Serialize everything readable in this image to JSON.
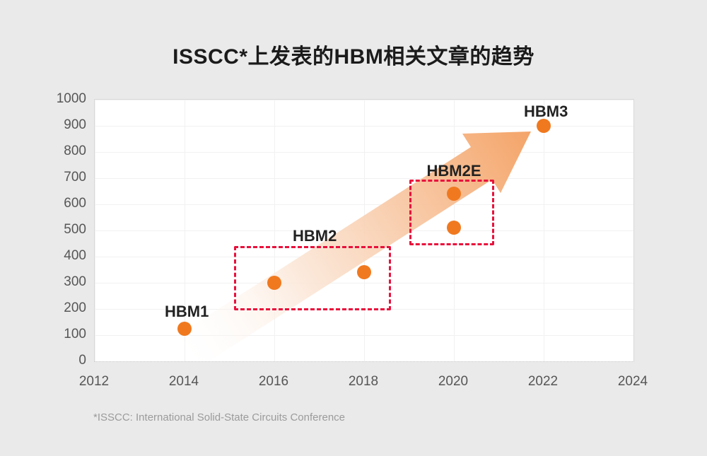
{
  "title": "ISSCC*上发表的HBM相关文章的趋势",
  "footnote": "*ISSCC: International Solid-State Circuits Conference",
  "colors": {
    "background": "#eaeaea",
    "plot_background": "#ffffff",
    "gridline": "#f1f1f1",
    "dot_orange": "#f0791f",
    "arrow_orange": "#f4a468",
    "arrow_orange_light": "#fbe7d8",
    "group_box_red": "#e8113c",
    "label_dark": "#222222",
    "tick_gray": "#565656",
    "footnote_gray": "#9b9b9b"
  },
  "chart_data": {
    "type": "scatter",
    "title": "ISSCC*上发表的HBM相关文章的趋势",
    "xlabel": "",
    "ylabel": "",
    "xlim": [
      2012,
      2024
    ],
    "ylim": [
      0,
      1000
    ],
    "x_ticks": [
      "2012",
      "2014",
      "2016",
      "2018",
      "2020",
      "2022",
      "2024"
    ],
    "y_ticks": [
      0,
      100,
      200,
      300,
      400,
      500,
      600,
      700,
      800,
      900,
      1000
    ],
    "grid": true,
    "legend": "none",
    "points": [
      {
        "x": 2014,
        "y": 125,
        "generation": "HBM1"
      },
      {
        "x": 2016,
        "y": 300,
        "generation": "HBM2"
      },
      {
        "x": 2018,
        "y": 340,
        "generation": "HBM2"
      },
      {
        "x": 2020,
        "y": 510,
        "generation": "HBM2E"
      },
      {
        "x": 2020,
        "y": 640,
        "generation": "HBM2E"
      },
      {
        "x": 2022,
        "y": 900,
        "generation": "HBM3"
      }
    ],
    "labels": [
      {
        "text": "HBM1",
        "x": 2014.05,
        "y": 190
      },
      {
        "text": "HBM2",
        "x": 2016.9,
        "y": 478
      },
      {
        "text": "HBM2E",
        "x": 2020.0,
        "y": 726
      },
      {
        "text": "HBM3",
        "x": 2022.05,
        "y": 954
      }
    ],
    "group_boxes": [
      {
        "label": "HBM2",
        "x": [
          2015.1,
          2018.6
        ],
        "y": [
          195,
          440
        ]
      },
      {
        "label": "HBM2E",
        "x": [
          2019.0,
          2020.9
        ],
        "y": [
          443,
          695
        ]
      }
    ],
    "trend_arrow": {
      "from_x": 2014.05,
      "from_y": 27,
      "to_x": 2021.7,
      "to_y": 878
    }
  }
}
